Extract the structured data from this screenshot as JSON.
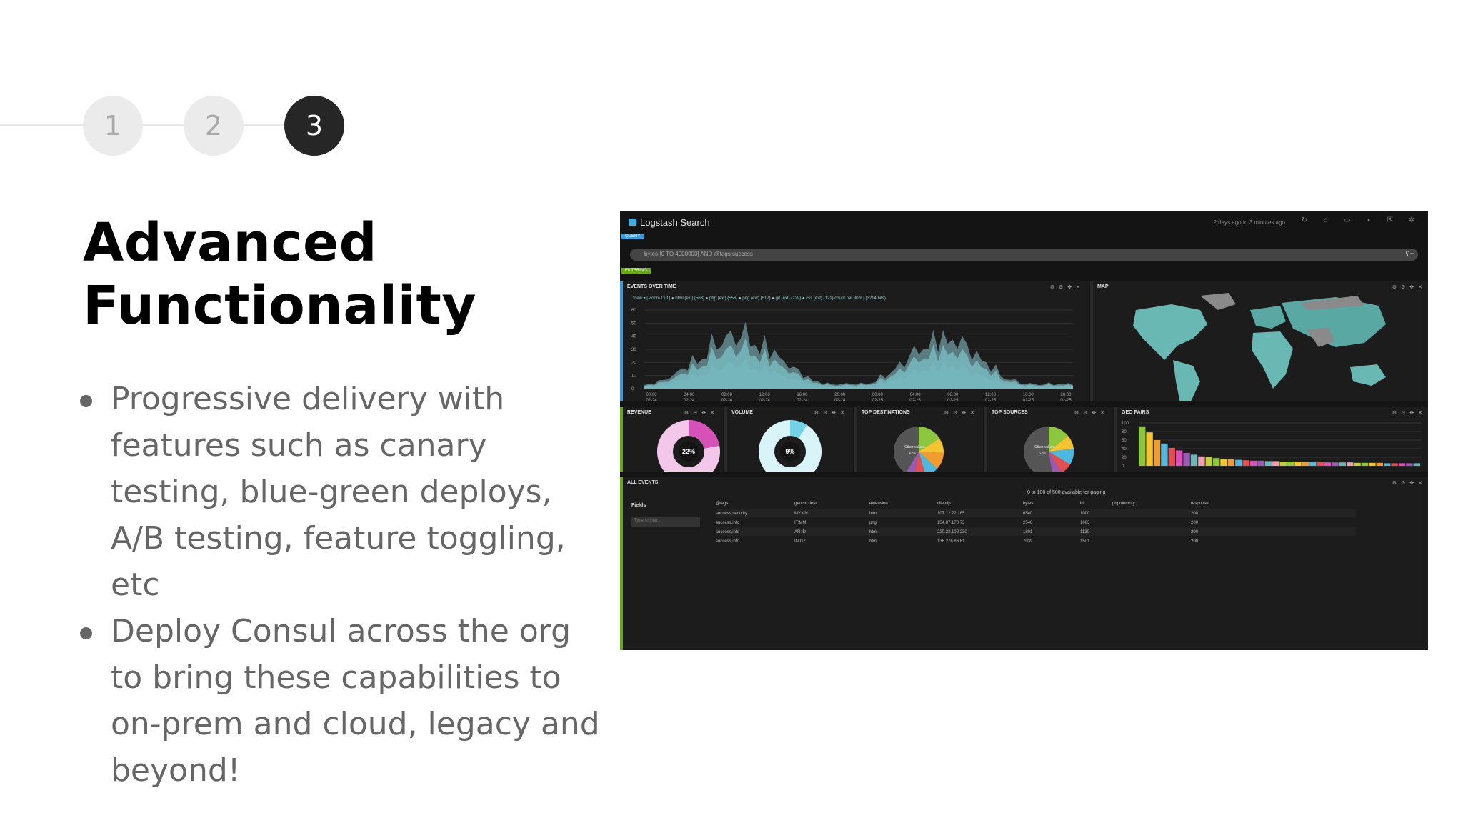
{
  "stepper": {
    "steps": [
      "1",
      "2",
      "3"
    ],
    "active_index": 2
  },
  "heading": {
    "line1": "Advanced",
    "line2": "Functionality"
  },
  "bullets": [
    "Progressive delivery with features such as canary testing, blue-green deploys, A/B testing, feature toggling, etc",
    "Deploy Consul across the org to bring these capabilities to on-prem and cloud, legacy and beyond!"
  ],
  "dashboard": {
    "app_title": "Logstash Search",
    "query_tag": "QUERY",
    "filter_tag": "FILTERING",
    "time_range": "2 days ago to 3 minutes ago",
    "search_query": "bytes:[0 TO 4000000] AND @tags:success",
    "panels": {
      "events": {
        "title": "EVENTS OVER TIME",
        "legend": "View ▾ | Zoom Out | ● html (ext) (563) ● php (ext) (556) ● png (ext) (517) ● gif (ext) (229) ● css (ext) (121) count per 30m | (3214 hits)"
      },
      "map": {
        "title": "MAP"
      },
      "revenue": {
        "title": "REVENUE",
        "value": "22%"
      },
      "volume": {
        "title": "VOLUME",
        "value": "9%"
      },
      "top_destinations": {
        "title": "TOP DESTINATIONS",
        "other_label": "Other values",
        "other_value": "42%"
      },
      "top_sources": {
        "title": "TOP SOURCES",
        "other_label": "Other values",
        "other_value": "62%"
      },
      "geo_pairs": {
        "title": "GEO PAIRS"
      },
      "all_events": {
        "title": "ALL EVENTS",
        "paging": "0 to 100 of 500 available for paging",
        "fields_label": "Fields",
        "filter_placeholder": "Type to filter...",
        "columns": [
          "@tags",
          "geo.srcdest",
          "extension",
          "clientip",
          "bytes",
          "id",
          "phpmemory",
          "response"
        ],
        "rows": [
          [
            "success,security",
            "MY:VN",
            "html",
            "107.12.22.165",
            "6540",
            "1000",
            "",
            "200"
          ],
          [
            "success,info",
            "IT:MM",
            "png",
            "154.87.170.73",
            "2548",
            "1003",
            "",
            "200"
          ],
          [
            "success,info",
            "AR:ID",
            "html",
            "220.23.102.230",
            "1801",
            "1130",
            "",
            "200"
          ],
          [
            "success,info",
            "IN:GZ",
            "html",
            "136.276.86.61",
            "7039",
            "1501",
            "",
            "200"
          ]
        ]
      }
    },
    "time_ticks": [
      "00:00 02-24",
      "04:00 02-24",
      "08:00 02-24",
      "12:00 02-24",
      "16:00 02-24",
      "20:00 02-24",
      "00:00 02-25",
      "04:00 02-25",
      "08:00 02-25",
      "12:00 02-25",
      "16:00 02-25",
      "20:00 02-25"
    ],
    "y_ticks": [
      "0",
      "10",
      "20",
      "30",
      "40",
      "50",
      "60"
    ],
    "geo_y_ticks": [
      "0",
      "20",
      "40",
      "60",
      "80",
      "100"
    ],
    "colors": {
      "teal1": "#3e7f87",
      "teal2": "#5fa7ae",
      "teal3": "#8cc9cf",
      "pink": "#d651b8",
      "lightpink": "#f2c7ea",
      "cyan": "#74d2e6",
      "lightcyan": "#d9f4f9"
    }
  }
}
